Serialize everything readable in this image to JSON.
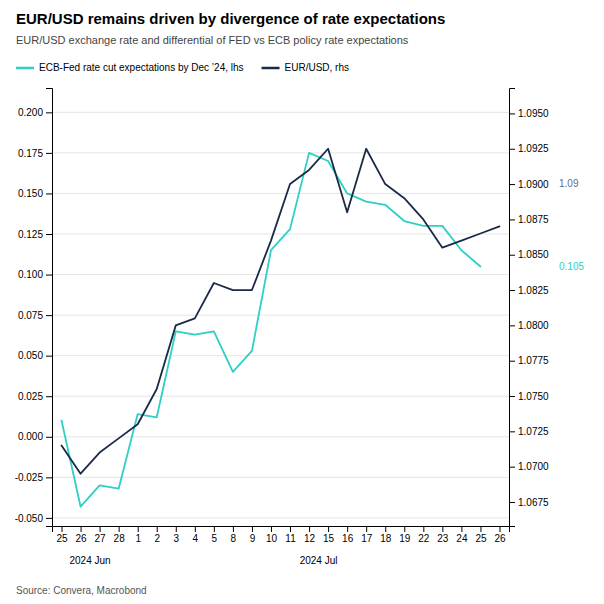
{
  "chart_data": {
    "type": "line",
    "title": "EUR/USD remains driven by divergence of rate expectations",
    "subtitle": "EUR/USD exchange rate and differential of FED vs ECB policy rate expectations",
    "source": "Source: Convera, Macrobond",
    "categories": [
      "25",
      "26",
      "27",
      "28",
      "1",
      "2",
      "3",
      "4",
      "5",
      "8",
      "9",
      "10",
      "11",
      "12",
      "15",
      "16",
      "17",
      "18",
      "19",
      "22",
      "23",
      "24",
      "25",
      "26"
    ],
    "series": [
      {
        "name": "ECB-Fed rate cut expectations by Dec ’24, lhs",
        "color": "#2ECFC4",
        "axis": "y",
        "values": [
          0.01,
          -0.043,
          -0.03,
          -0.032,
          0.014,
          0.012,
          0.065,
          0.063,
          0.065,
          0.04,
          0.053,
          0.115,
          0.128,
          0.175,
          0.17,
          0.15,
          0.145,
          0.143,
          0.133,
          0.13,
          0.13,
          0.115,
          0.105,
          null
        ]
      },
      {
        "name": "EUR/USD, rhs",
        "color": "#1B2A47",
        "axis": "y2",
        "values": [
          1.0715,
          1.0695,
          1.071,
          1.072,
          1.073,
          1.0755,
          1.08,
          1.0805,
          1.083,
          1.0825,
          1.0825,
          1.086,
          1.09,
          1.091,
          1.0925,
          1.088,
          1.0925,
          1.09,
          1.089,
          1.0875,
          1.0855,
          1.086,
          1.0865,
          1.087
        ]
      }
    ],
    "ylim": [
      -0.055,
      0.215
    ],
    "yticks": [
      {
        "value": -0.05,
        "label": "-0.050"
      },
      -0.025,
      {
        "value": 0,
        "label": "0.000"
      },
      0.025,
      {
        "value": 0.05,
        "label": "0.050"
      },
      0.075,
      {
        "value": 0.1,
        "label": "0.100"
      },
      0.125,
      {
        "value": 0.15,
        "label": "0.150"
      },
      0.175,
      {
        "value": 0.2,
        "label": "0.200"
      }
    ],
    "y2lim": [
      1.0658,
      1.0968
    ],
    "y2ticks": [
      1.0675,
      {
        "value": 1.07,
        "label": "1.0700"
      },
      1.0725,
      {
        "value": 1.075,
        "label": "1.0750"
      },
      1.0775,
      {
        "value": 1.08,
        "label": "1.0800"
      },
      1.0825,
      {
        "value": 1.085,
        "label": "1.0850"
      },
      1.0875,
      {
        "value": 1.09,
        "label": "1.0900"
      },
      1.0925,
      {
        "value": 1.095,
        "label": "1.0950"
      }
    ],
    "annotations": [
      {
        "text": "2024 Jun",
        "x": 1.5
      },
      {
        "text": "2024 Jul",
        "x": 13.5
      },
      {
        "text": "1.09",
        "y": 1.09,
        "axis": "y2",
        "color": "#5B6E8C"
      },
      {
        "text": "0.105",
        "y": 0.105,
        "axis": "y",
        "color": "#2ECFC4"
      }
    ],
    "grid": true,
    "legend": "top-left"
  }
}
